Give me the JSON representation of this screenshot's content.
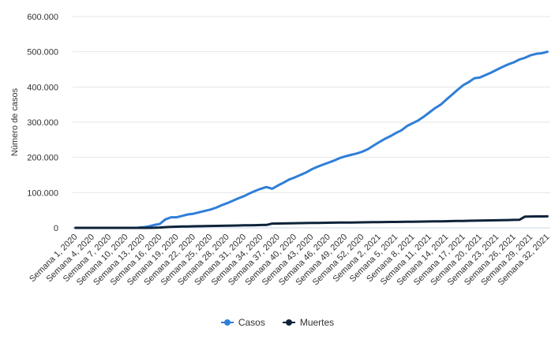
{
  "chart_data": {
    "type": "line",
    "title": "",
    "xlabel": "",
    "ylabel": "Número de casos",
    "ylim": [
      0,
      600000
    ],
    "yticks": [
      0,
      100000,
      200000,
      300000,
      400000,
      500000,
      600000
    ],
    "ytick_labels": [
      "0",
      "100.000",
      "200.000",
      "300.000",
      "400.000",
      "500.000",
      "600.000"
    ],
    "grid": true,
    "legend_position": "bottom-center",
    "categories": [
      "Semana 1, 2020",
      "Semana 2, 2020",
      "Semana 3, 2020",
      "Semana 4, 2020",
      "Semana 5, 2020",
      "Semana 6, 2020",
      "Semana 7, 2020",
      "Semana 8, 2020",
      "Semana 9, 2020",
      "Semana 10, 2020",
      "Semana 11, 2020",
      "Semana 12, 2020",
      "Semana 13, 2020",
      "Semana 14, 2020",
      "Semana 15, 2020",
      "Semana 16, 2020",
      "Semana 17, 2020",
      "Semana 18, 2020",
      "Semana 19, 2020",
      "Semana 20, 2020",
      "Semana 21, 2020",
      "Semana 22, 2020",
      "Semana 23, 2020",
      "Semana 24, 2020",
      "Semana 25, 2020",
      "Semana 26, 2020",
      "Semana 27, 2020",
      "Semana 28, 2020",
      "Semana 29, 2020",
      "Semana 30, 2020",
      "Semana 31, 2020",
      "Semana 32, 2020",
      "Semana 33, 2020",
      "Semana 34, 2020",
      "Semana 35, 2020",
      "Semana 36, 2020",
      "Semana 37, 2020",
      "Semana 38, 2020",
      "Semana 39, 2020",
      "Semana 40, 2020",
      "Semana 41, 2020",
      "Semana 42, 2020",
      "Semana 43, 2020",
      "Semana 44, 2020",
      "Semana 45, 2020",
      "Semana 46, 2020",
      "Semana 47, 2020",
      "Semana 48, 2020",
      "Semana 49, 2020",
      "Semana 50, 2020",
      "Semana 51, 2020",
      "Semana 52, 2020",
      "Semana 53, 2020",
      "Semana 1, 2021",
      "Semana 2, 2021",
      "Semana 3, 2021",
      "Semana 4, 2021",
      "Semana 5, 2021",
      "Semana 6, 2021",
      "Semana 7, 2021",
      "Semana 8, 2021",
      "Semana 9, 2021",
      "Semana 10, 2021",
      "Semana 11, 2021",
      "Semana 12, 2021",
      "Semana 13, 2021",
      "Semana 14, 2021",
      "Semana 15, 2021",
      "Semana 16, 2021",
      "Semana 17, 2021",
      "Semana 18, 2021",
      "Semana 19, 2021",
      "Semana 20, 2021",
      "Semana 21, 2021",
      "Semana 22, 2021",
      "Semana 23, 2021",
      "Semana 24, 2021",
      "Semana 25, 2021",
      "Semana 26, 2021",
      "Semana 27, 2021",
      "Semana 28, 2021",
      "Semana 29, 2021",
      "Semana 30, 2021",
      "Semana 31, 2021",
      "Semana 32, 2021"
    ],
    "xtick_labels": [
      "Semana 1, 2020",
      "Semana 4, 2020",
      "Semana 7, 2020",
      "Semana 10, 2020",
      "Semana 13, 2020",
      "Semana 16, 2020",
      "Semana 19, 2020",
      "Semana 22, 2020",
      "Semana 25, 2020",
      "Semana 28, 2020",
      "Semana 31, 2020",
      "Semana 34, 2020",
      "Semana 37, 2020",
      "Semana 40, 2020",
      "Semana 43, 2020",
      "Semana 46, 2020",
      "Semana 49, 2020",
      "Semana 52, 2020",
      "Semana 2, 2021",
      "Semana 5, 2021",
      "Semana 8, 2021",
      "Semana 11, 2021",
      "Semana 14, 2021",
      "Semana 17, 2021",
      "Semana 20, 2021",
      "Semana 23, 2021",
      "Semana 26, 2021",
      "Semana 29, 2021",
      "Semana 32, 2021"
    ],
    "series": [
      {
        "name": "Casos",
        "color": "#2f7ed8",
        "values": [
          0,
          0,
          0,
          0,
          0,
          0,
          0,
          0,
          0,
          0,
          0,
          200,
          1500,
          4000,
          8000,
          11000,
          24000,
          30000,
          30000,
          34000,
          38000,
          40000,
          44000,
          48000,
          52000,
          57000,
          64000,
          70000,
          77000,
          84000,
          90000,
          98000,
          105000,
          111000,
          116000,
          111000,
          120000,
          128000,
          137000,
          143000,
          150000,
          157000,
          166000,
          173000,
          179000,
          185000,
          191000,
          198000,
          203000,
          207000,
          211000,
          216000,
          223000,
          233000,
          243000,
          252000,
          260000,
          269000,
          277000,
          289000,
          297000,
          305000,
          316000,
          328000,
          340000,
          350000,
          364000,
          378000,
          392000,
          405000,
          414000,
          425000,
          427000,
          434000,
          441000,
          449000,
          457000,
          464000,
          470000,
          478000,
          483000,
          490000,
          494000,
          496000,
          500000
        ]
      },
      {
        "name": "Muertes",
        "color": "#0d233a",
        "values": [
          0,
          0,
          0,
          0,
          0,
          0,
          0,
          0,
          0,
          0,
          0,
          0,
          0,
          100,
          300,
          800,
          2000,
          2800,
          3300,
          3700,
          4100,
          4400,
          4700,
          5000,
          5300,
          5600,
          5900,
          6200,
          6500,
          6800,
          7100,
          7400,
          7700,
          8000,
          8300,
          12000,
          12300,
          12600,
          12900,
          13200,
          13500,
          13700,
          13900,
          14100,
          14300,
          14500,
          14700,
          14900,
          15100,
          15300,
          15500,
          15700,
          15900,
          16100,
          16300,
          16500,
          16700,
          16900,
          17100,
          17300,
          17500,
          17700,
          17900,
          18100,
          18300,
          18600,
          18900,
          19200,
          19500,
          19800,
          20100,
          20400,
          20700,
          21000,
          21300,
          21600,
          21900,
          22200,
          22500,
          22800,
          32000,
          32200,
          32400,
          32500,
          32600
        ]
      }
    ]
  }
}
